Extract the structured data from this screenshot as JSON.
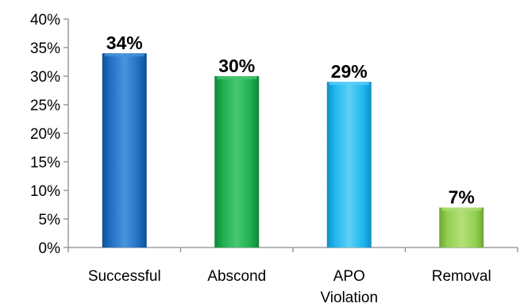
{
  "chart_data": {
    "type": "bar",
    "title": "",
    "xlabel": "",
    "ylabel": "",
    "categories": [
      [
        "Successful"
      ],
      [
        "Abscond"
      ],
      [
        "APO",
        "Violation"
      ],
      [
        "Removal"
      ]
    ],
    "values": [
      34,
      30,
      29,
      7
    ],
    "value_labels": [
      "34%",
      "30%",
      "29%",
      "7%"
    ],
    "ylim": [
      0,
      40
    ],
    "y_ticks": [
      0,
      5,
      10,
      15,
      20,
      25,
      30,
      35,
      40
    ],
    "y_tick_labels": [
      "0%",
      "5%",
      "10%",
      "15%",
      "20%",
      "25%",
      "30%",
      "35%",
      "40%"
    ],
    "grid": false,
    "legend": "none",
    "bar_colors": [
      {
        "base": "#1f6fc1",
        "light": "#4a94de",
        "dark": "#0f4f94"
      },
      {
        "base": "#1fae4e",
        "light": "#47c873",
        "dark": "#10843a"
      },
      {
        "base": "#1fb6ef",
        "light": "#5dd0f6",
        "dark": "#0f8fc4"
      },
      {
        "base": "#92d050",
        "light": "#b3e07a",
        "dark": "#6fa733"
      }
    ]
  }
}
